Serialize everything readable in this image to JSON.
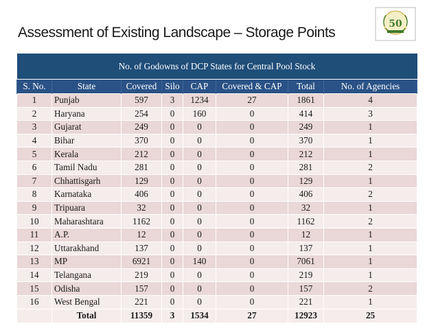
{
  "slide": {
    "title": "Assessment of Existing Landscape – Storage Points"
  },
  "logo": {
    "icon": "fifty-years-emblem-icon",
    "number": "50"
  },
  "table": {
    "caption": "No. of Godowns of DCP States for Central Pool Stock",
    "headers": [
      "S. No.",
      "State",
      "Covered",
      "Silo",
      "CAP",
      "Covered & CAP",
      "Total",
      "No. of Agencies"
    ],
    "rows": [
      [
        "1",
        "Punjab",
        "597",
        "3",
        "1234",
        "27",
        "1861",
        "4"
      ],
      [
        "2",
        "Haryana",
        "254",
        "0",
        "160",
        "0",
        "414",
        "3"
      ],
      [
        "3",
        "Gujarat",
        "249",
        "0",
        "0",
        "0",
        "249",
        "1"
      ],
      [
        "4",
        "Bihar",
        "370",
        "0",
        "0",
        "0",
        "370",
        "1"
      ],
      [
        "5",
        "Kerala",
        "212",
        "0",
        "0",
        "0",
        "212",
        "1"
      ],
      [
        "6",
        "Tamil Nadu",
        "281",
        "0",
        "0",
        "0",
        "281",
        "2"
      ],
      [
        "7",
        "Chhattisgarh",
        "129",
        "0",
        "0",
        "0",
        "129",
        "1"
      ],
      [
        "8",
        "Karnataka",
        "406",
        "0",
        "0",
        "0",
        "406",
        "2"
      ],
      [
        "9",
        "Tripuara",
        "32",
        "0",
        "0",
        "0",
        "32",
        "1"
      ],
      [
        "10",
        "Maharashtara",
        "1162",
        "0",
        "0",
        "0",
        "1162",
        "2"
      ],
      [
        "11",
        "A.P.",
        "12",
        "0",
        "0",
        "0",
        "12",
        "1"
      ],
      [
        "12",
        "Uttarakhand",
        "137",
        "0",
        "0",
        "0",
        "137",
        "1"
      ],
      [
        "13",
        "MP",
        "6921",
        "0",
        "140",
        "0",
        "7061",
        "1"
      ],
      [
        "14",
        "Telangana",
        "219",
        "0",
        "0",
        "0",
        "219",
        "1"
      ],
      [
        "15",
        "Odisha",
        "157",
        "0",
        "0",
        "0",
        "157",
        "2"
      ],
      [
        "16",
        "West Bengal",
        "221",
        "0",
        "0",
        "0",
        "221",
        "1"
      ]
    ],
    "total": {
      "label": "Total",
      "covered": "11359",
      "silo": "3",
      "cap": "1534",
      "covered_cap": "27",
      "total": "12923",
      "agencies": "25"
    }
  }
}
